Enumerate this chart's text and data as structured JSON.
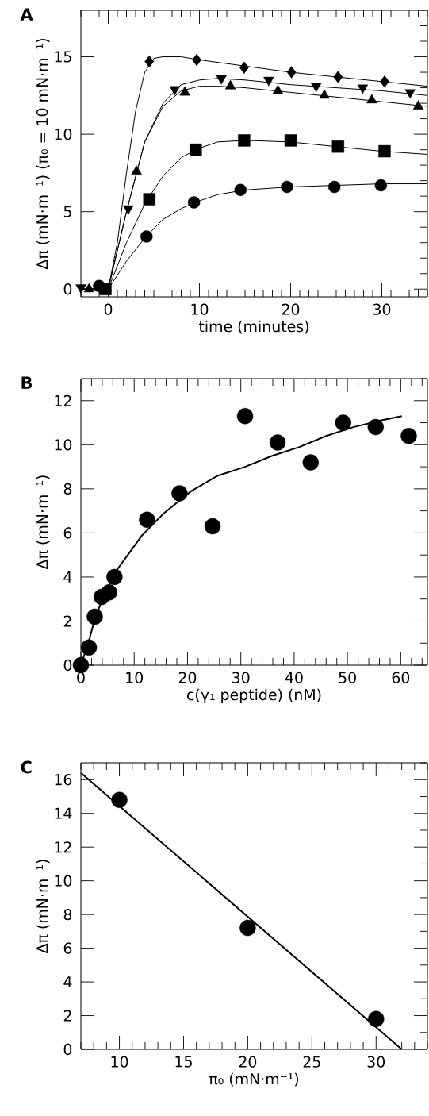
{
  "chart_data": [
    {
      "type": "line",
      "title": "A",
      "xlabel": "time (minutes)",
      "ylabel": "Δπ (mN·m⁻¹) (π₀ = 10 mN·m⁻¹)",
      "xlim": [
        -3,
        35
      ],
      "ylim": [
        -0.5,
        18
      ],
      "xticks": [
        0,
        10,
        20,
        30
      ],
      "yticks": [
        0,
        5,
        10,
        15
      ],
      "series": [
        {
          "color": "#000000",
          "marker": "none",
          "x": [
            -3,
            0,
            1,
            2,
            3,
            4,
            5,
            6,
            8,
            10,
            15,
            20,
            25,
            30,
            35
          ],
          "values": [
            0,
            0,
            3,
            7.5,
            11.5,
            14,
            14.9,
            15,
            15,
            14.8,
            14.4,
            14,
            13.7,
            13.4,
            13.1
          ]
        },
        {
          "color": "#000000",
          "marker": "none",
          "x": [
            -3,
            0,
            2,
            4,
            6,
            8,
            10,
            12,
            15,
            20,
            25,
            30,
            35
          ],
          "values": [
            0,
            0,
            5,
            9.5,
            12,
            13.2,
            13.5,
            13.6,
            13.5,
            13.2,
            13,
            12.8,
            12.5
          ]
        },
        {
          "color": "#000000",
          "marker": "none",
          "x": [
            -3,
            0,
            2,
            4,
            6,
            8,
            10,
            12,
            15,
            20,
            25,
            30,
            35
          ],
          "values": [
            0,
            0,
            5,
            9.5,
            11.8,
            12.8,
            13.1,
            13.1,
            13,
            12.7,
            12.4,
            12.1,
            11.8
          ]
        },
        {
          "color": "#000000",
          "marker": "none",
          "x": [
            -3,
            0,
            2,
            4,
            6,
            8,
            10,
            12,
            15,
            20,
            25,
            30,
            35
          ],
          "values": [
            0,
            0,
            3,
            5.5,
            7.3,
            8.5,
            9.1,
            9.5,
            9.6,
            9.5,
            9.2,
            8.9,
            8.7
          ]
        },
        {
          "color": "#000000",
          "marker": "none",
          "x": [
            -3,
            0,
            2,
            4,
            6,
            8,
            10,
            12,
            15,
            20,
            25,
            30,
            35
          ],
          "values": [
            0,
            0,
            1.8,
            3.3,
            4.5,
            5.2,
            5.7,
            6.1,
            6.4,
            6.6,
            6.7,
            6.8,
            6.8
          ]
        },
        {
          "type": "scatter",
          "color": "#000000",
          "marker": "diamond",
          "x": [
            4.5,
            9.7,
            14.9,
            20.1,
            25.2,
            30.3
          ],
          "values": [
            14.7,
            14.8,
            14.3,
            14.0,
            13.7,
            13.4
          ]
        },
        {
          "type": "scatter",
          "color": "#000000",
          "marker": "triangle-down",
          "x": [
            -3,
            2.2,
            7.3,
            12.4,
            17.6,
            22.8,
            27.9,
            33.1
          ],
          "values": [
            0.1,
            5.2,
            12.9,
            13.6,
            13.5,
            13.1,
            13.0,
            12.7
          ]
        },
        {
          "type": "scatter",
          "color": "#000000",
          "marker": "triangle",
          "x": [
            -2.1,
            3.1,
            8.4,
            13.4,
            18.6,
            23.7,
            28.9,
            34.0
          ],
          "values": [
            0,
            7.6,
            12.7,
            13.1,
            12.8,
            12.5,
            12.2,
            11.8
          ]
        },
        {
          "type": "scatter",
          "color": "#000000",
          "marker": "square",
          "x": [
            -0.3,
            4.5,
            9.6,
            14.9,
            20.0,
            25.2,
            30.3
          ],
          "values": [
            0,
            5.8,
            9.0,
            9.6,
            9.6,
            9.2,
            8.9
          ]
        },
        {
          "type": "scatter",
          "color": "#000000",
          "marker": "circle",
          "x": [
            -1,
            4.2,
            9.4,
            14.5,
            19.6,
            24.8,
            29.9
          ],
          "values": [
            0.2,
            3.4,
            5.6,
            6.4,
            6.6,
            6.6,
            6.7
          ]
        }
      ]
    },
    {
      "type": "scatter",
      "title": "B",
      "xlabel": "c(γ₁ peptide) (nM)",
      "ylabel": "Δπ (mN·m⁻¹)",
      "xlim": [
        0,
        65
      ],
      "ylim": [
        0,
        13
      ],
      "xticks": [
        0,
        10,
        20,
        30,
        40,
        50,
        60
      ],
      "yticks": [
        0,
        2,
        4,
        6,
        8,
        10,
        12
      ],
      "series": [
        {
          "type": "line",
          "color": "#000000",
          "marker": "none",
          "x": [
            0,
            1.4,
            2.6,
            4.4,
            6.4,
            8.5,
            11.5,
            15.6,
            20.7,
            25.7,
            30.8,
            35.9,
            41,
            46,
            51.1,
            56.2,
            60.2
          ],
          "values": [
            0,
            1.0,
            2.1,
            3.2,
            4.2,
            4.9,
            5.9,
            6.9,
            7.9,
            8.6,
            9.0,
            9.5,
            9.9,
            10.4,
            10.8,
            11.1,
            11.3
          ]
        },
        {
          "color": "#000000",
          "marker": "circle",
          "x": [
            0,
            1.5,
            2.6,
            3.9,
            5.3,
            6.3,
            12.4,
            18.5,
            24.7,
            30.8,
            36.9,
            43.1,
            49.2,
            55.3,
            61.5
          ],
          "values": [
            0,
            0.8,
            2.2,
            3.1,
            3.3,
            4.0,
            6.6,
            7.8,
            6.3,
            11.3,
            10.1,
            9.2,
            11.0,
            10.8,
            10.4
          ]
        }
      ]
    },
    {
      "type": "scatter",
      "title": "C",
      "xlabel": "π₀ (mN·m⁻¹)",
      "ylabel": "Δπ (mN·m⁻¹)",
      "xlim": [
        7,
        34
      ],
      "ylim": [
        0,
        17
      ],
      "xticks": [
        10,
        15,
        20,
        25,
        30
      ],
      "yticks": [
        0,
        2,
        4,
        6,
        8,
        10,
        12,
        14,
        16
      ],
      "series": [
        {
          "type": "line",
          "color": "#000000",
          "marker": "none",
          "x": [
            7,
            32
          ],
          "values": [
            16.4,
            0
          ]
        },
        {
          "color": "#000000",
          "marker": "circle",
          "x": [
            10,
            20,
            30
          ],
          "values": [
            14.8,
            7.2,
            1.8
          ]
        }
      ]
    }
  ]
}
